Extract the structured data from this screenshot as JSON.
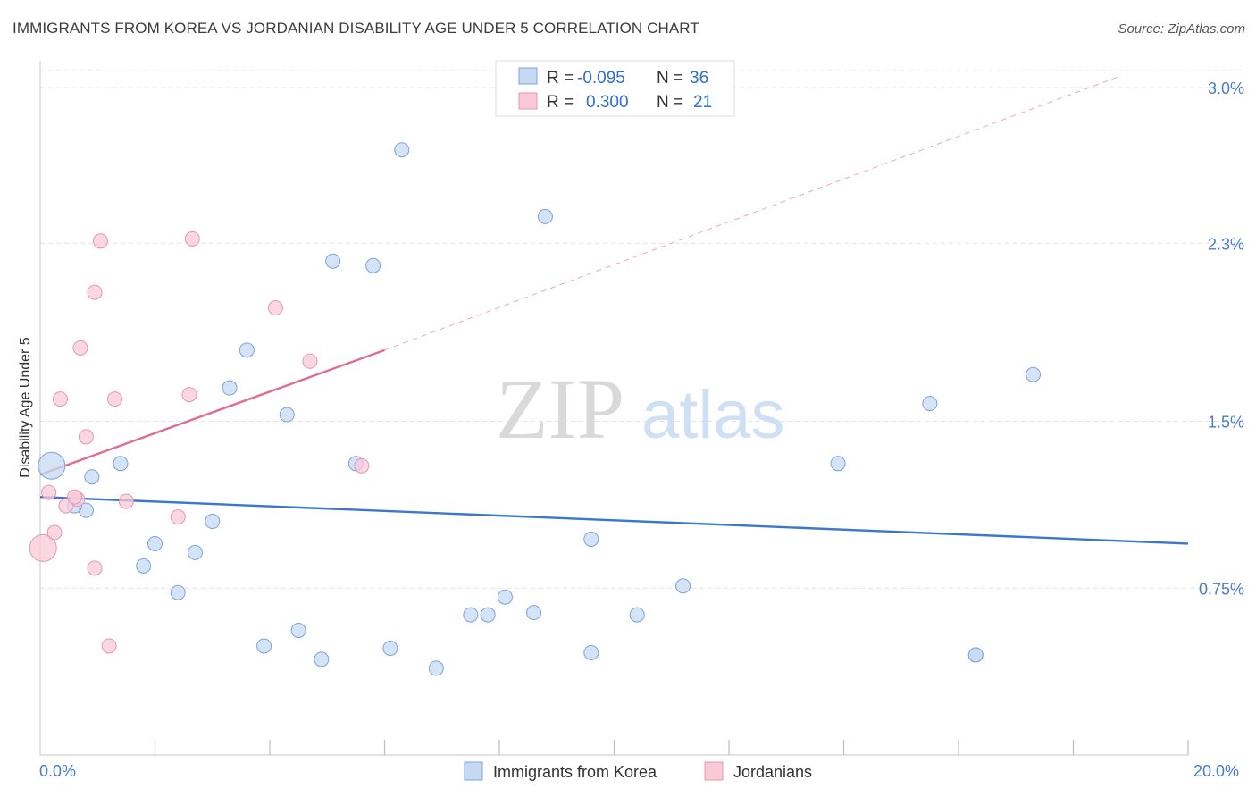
{
  "title": "IMMIGRANTS FROM KOREA VS JORDANIAN DISABILITY AGE UNDER 5 CORRELATION CHART",
  "source": "Source: ZipAtlas.com",
  "watermark": {
    "zip": "ZIP",
    "atlas": "atlas"
  },
  "colors": {
    "blue": "#3a78d0",
    "blue_fill": "#c5d9f3",
    "pink": "#e06b93",
    "pink_fill": "#f9c9d8",
    "accent_text": "#2f6fce"
  },
  "legend_top": [
    {
      "r_label": "R = ",
      "r_value": "-0.095",
      "n_label": "N = ",
      "n_value": "36",
      "color": "blue"
    },
    {
      "r_label": "R = ",
      "r_value": "0.300",
      "n_label": "N = ",
      "n_value": "21",
      "color": "pink"
    }
  ],
  "chart_data": {
    "type": "scatter",
    "title": "IMMIGRANTS FROM KOREA VS JORDANIAN DISABILITY AGE UNDER 5 CORRELATION CHART",
    "xlabel": "",
    "ylabel": "Disability Age Under 5",
    "xlim": [
      0,
      20
    ],
    "ylim": [
      0,
      3.0
    ],
    "x_tick_labels": [
      "0.0%",
      "20.0%"
    ],
    "y_ticks": [
      0.75,
      1.5,
      2.3,
      3.0
    ],
    "y_tick_labels": [
      "0.75%",
      "1.5%",
      "2.3%",
      "3.0%"
    ],
    "grid": true,
    "legend_position": "bottom-center",
    "series": [
      {
        "name": "Immigrants from Korea",
        "color": "blue",
        "points": [
          {
            "x": 0.2,
            "y": 1.3,
            "big": true
          },
          {
            "x": 0.8,
            "y": 1.1
          },
          {
            "x": 0.9,
            "y": 1.25
          },
          {
            "x": 1.4,
            "y": 1.31
          },
          {
            "x": 1.8,
            "y": 0.85
          },
          {
            "x": 2.0,
            "y": 0.95
          },
          {
            "x": 2.4,
            "y": 0.73
          },
          {
            "x": 2.7,
            "y": 0.91
          },
          {
            "x": 3.0,
            "y": 1.05
          },
          {
            "x": 3.3,
            "y": 1.65
          },
          {
            "x": 3.6,
            "y": 1.82
          },
          {
            "x": 3.9,
            "y": 0.49
          },
          {
            "x": 4.3,
            "y": 1.53
          },
          {
            "x": 4.5,
            "y": 0.56
          },
          {
            "x": 4.9,
            "y": 0.43
          },
          {
            "x": 5.1,
            "y": 2.22
          },
          {
            "x": 5.5,
            "y": 1.31
          },
          {
            "x": 5.8,
            "y": 2.2
          },
          {
            "x": 6.1,
            "y": 0.48
          },
          {
            "x": 6.3,
            "y": 2.72
          },
          {
            "x": 6.9,
            "y": 0.39
          },
          {
            "x": 7.5,
            "y": 0.63
          },
          {
            "x": 7.8,
            "y": 0.63
          },
          {
            "x": 8.1,
            "y": 0.71
          },
          {
            "x": 8.6,
            "y": 0.64
          },
          {
            "x": 8.8,
            "y": 2.42
          },
          {
            "x": 9.6,
            "y": 0.97
          },
          {
            "x": 9.6,
            "y": 0.46
          },
          {
            "x": 10.4,
            "y": 0.63
          },
          {
            "x": 11.2,
            "y": 0.76
          },
          {
            "x": 13.9,
            "y": 1.31
          },
          {
            "x": 15.5,
            "y": 1.58
          },
          {
            "x": 16.3,
            "y": 0.45
          },
          {
            "x": 16.3,
            "y": 0.45
          },
          {
            "x": 17.3,
            "y": 1.71
          },
          {
            "x": 0.6,
            "y": 1.12
          }
        ],
        "trend": {
          "x0": 0,
          "y0": 1.16,
          "x1": 20,
          "y1": 0.95
        }
      },
      {
        "name": "Jordanians",
        "color": "pink",
        "points": [
          {
            "x": 0.05,
            "y": 0.93,
            "big": true
          },
          {
            "x": 0.15,
            "y": 1.18
          },
          {
            "x": 0.25,
            "y": 1.0
          },
          {
            "x": 0.35,
            "y": 1.6
          },
          {
            "x": 0.45,
            "y": 1.12
          },
          {
            "x": 0.65,
            "y": 1.15
          },
          {
            "x": 0.7,
            "y": 1.83
          },
          {
            "x": 0.8,
            "y": 1.43
          },
          {
            "x": 0.95,
            "y": 2.08
          },
          {
            "x": 0.95,
            "y": 0.84
          },
          {
            "x": 1.05,
            "y": 2.31
          },
          {
            "x": 1.2,
            "y": 0.49
          },
          {
            "x": 1.3,
            "y": 1.6
          },
          {
            "x": 1.5,
            "y": 1.14
          },
          {
            "x": 2.4,
            "y": 1.07
          },
          {
            "x": 2.6,
            "y": 1.62
          },
          {
            "x": 2.65,
            "y": 2.32
          },
          {
            "x": 4.1,
            "y": 2.01
          },
          {
            "x": 4.7,
            "y": 1.77
          },
          {
            "x": 5.6,
            "y": 1.3
          },
          {
            "x": 0.6,
            "y": 1.16
          }
        ],
        "trend": {
          "x0": 0,
          "y0": 1.26,
          "x1": 6.0,
          "y1": 1.82
        },
        "trend_extension": {
          "x0": 6.0,
          "y0": 1.82,
          "x1": 18.8,
          "y1": 3.05
        }
      }
    ]
  },
  "bottom_legend": [
    {
      "label": "Immigrants from Korea",
      "color": "blue"
    },
    {
      "label": "Jordanians",
      "color": "pink"
    }
  ]
}
